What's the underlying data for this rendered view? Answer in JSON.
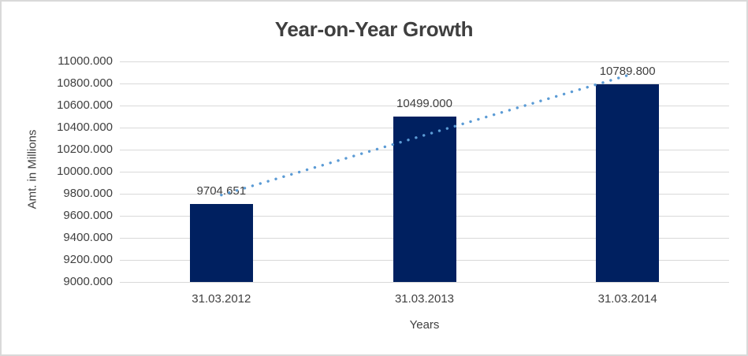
{
  "chart_data": {
    "type": "bar",
    "title": "Year-on-Year Growth",
    "xlabel": "Years",
    "ylabel": "Amt. in Millions",
    "categories": [
      "31.03.2012",
      "31.03.2013",
      "31.03.2014"
    ],
    "values": [
      9704.651,
      10499.0,
      10789.8
    ],
    "data_labels": [
      "9704.651",
      "10499.000",
      "10789.800"
    ],
    "ylim": [
      9000,
      11000
    ],
    "ytick_step": 200,
    "ytick_labels": [
      "9000.000",
      "9200.000",
      "9400.000",
      "9600.000",
      "9800.000",
      "10000.000",
      "10200.000",
      "10400.000",
      "10600.000",
      "10800.000",
      "11000.000"
    ],
    "grid": true,
    "legend": "none",
    "trendline": {
      "type": "linear",
      "style": "dotted",
      "endpoint_values": [
        9788.6,
        10873.7
      ]
    },
    "colors": {
      "bar": "#002060",
      "trendline": "#5b9bd5",
      "gridline": "#d9d9d9",
      "text": "#404040",
      "border": "#d9d9d9",
      "background": "#ffffff"
    }
  }
}
